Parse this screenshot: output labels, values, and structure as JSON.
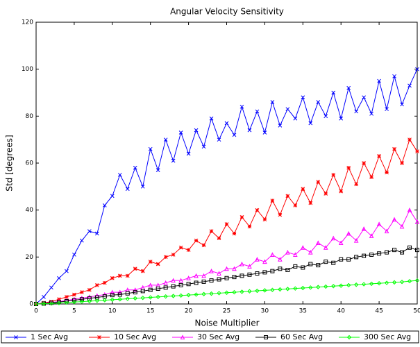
{
  "chart_data": {
    "type": "line",
    "title": "Angular Velocity Sensitivity",
    "xlabel": "Noise Multiplier",
    "ylabel": "Std [degrees]",
    "x": [
      0,
      1,
      2,
      3,
      4,
      5,
      6,
      7,
      8,
      9,
      10,
      11,
      12,
      13,
      14,
      15,
      16,
      17,
      18,
      19,
      20,
      21,
      22,
      23,
      24,
      25,
      26,
      27,
      28,
      29,
      30,
      31,
      32,
      33,
      34,
      35,
      36,
      37,
      38,
      39,
      40,
      41,
      42,
      43,
      44,
      45,
      46,
      47,
      48,
      49,
      50
    ],
    "xlim": [
      0,
      50
    ],
    "xticks": [
      0,
      5,
      10,
      15,
      20,
      25,
      30,
      35,
      40,
      45,
      50
    ],
    "ylim": [
      0,
      120
    ],
    "yticks": [
      0,
      20,
      40,
      60,
      80,
      100,
      120
    ],
    "series": [
      {
        "name": "1 Sec Avg",
        "color": "#0000ff",
        "marker": "x",
        "values": [
          0,
          3,
          7,
          11,
          14,
          21,
          27,
          31,
          30,
          42,
          46,
          55,
          49,
          58,
          50,
          66,
          57,
          70,
          61,
          73,
          64,
          74,
          67,
          79,
          70,
          77,
          72,
          84,
          74,
          82,
          73,
          86,
          76,
          83,
          79,
          88,
          77,
          86,
          80,
          90,
          79,
          92,
          82,
          88,
          81,
          95,
          83,
          97,
          85,
          93,
          100
        ]
      },
      {
        "name": "10 Sec Avg",
        "color": "#ff0000",
        "marker": "star",
        "values": [
          0,
          0.5,
          1,
          2,
          3,
          4,
          5,
          6,
          8,
          9,
          11,
          12,
          12,
          15,
          14,
          18,
          17,
          20,
          21,
          24,
          23,
          27,
          25,
          31,
          28,
          34,
          30,
          37,
          33,
          40,
          36,
          44,
          38,
          46,
          42,
          49,
          43,
          52,
          47,
          55,
          48,
          58,
          51,
          60,
          54,
          63,
          56,
          66,
          60,
          70,
          65
        ]
      },
      {
        "name": "30 Sec Avg",
        "color": "#ff00ff",
        "marker": "triangle",
        "values": [
          0,
          0.3,
          0.7,
          1,
          1.5,
          2,
          2.5,
          3,
          3.5,
          4,
          5,
          5,
          6,
          6,
          7,
          8,
          8,
          9,
          10,
          10,
          11,
          12,
          12,
          14,
          13,
          15,
          15,
          17,
          16,
          19,
          18,
          21,
          19,
          22,
          21,
          24,
          22,
          26,
          24,
          28,
          26,
          30,
          27,
          32,
          29,
          34,
          31,
          36,
          33,
          40,
          35
        ]
      },
      {
        "name": "60 Sec Avg",
        "color": "#000000",
        "marker": "square",
        "values": [
          0,
          0.2,
          0.5,
          0.8,
          1.2,
          1.6,
          2,
          2.4,
          2.8,
          3.2,
          3.8,
          4,
          4.5,
          5,
          5.5,
          6,
          6.5,
          7,
          7.5,
          8,
          8.5,
          9,
          9.5,
          10,
          10.5,
          11,
          11.5,
          12,
          12.5,
          13,
          13.5,
          14,
          15,
          14.5,
          16,
          15.5,
          17,
          16.5,
          18,
          17.5,
          19,
          19,
          20,
          20.5,
          21,
          21.5,
          22,
          23,
          22,
          24,
          23
        ]
      },
      {
        "name": "300 Sec Avg",
        "color": "#00ff00",
        "marker": "diamond",
        "values": [
          0,
          0.1,
          0.2,
          0.4,
          0.6,
          0.8,
          1,
          1.2,
          1.4,
          1.6,
          1.8,
          2,
          2.2,
          2.4,
          2.6,
          2.8,
          3,
          3.2,
          3.4,
          3.6,
          3.8,
          4,
          4.2,
          4.4,
          4.6,
          4.8,
          5,
          5.2,
          5.4,
          5.6,
          5.8,
          6,
          6.2,
          6.4,
          6.6,
          6.8,
          7,
          7.2,
          7.4,
          7.6,
          7.8,
          8,
          8.2,
          8.4,
          8.6,
          8.8,
          9,
          9.2,
          9.4,
          9.7,
          10
        ]
      }
    ]
  }
}
